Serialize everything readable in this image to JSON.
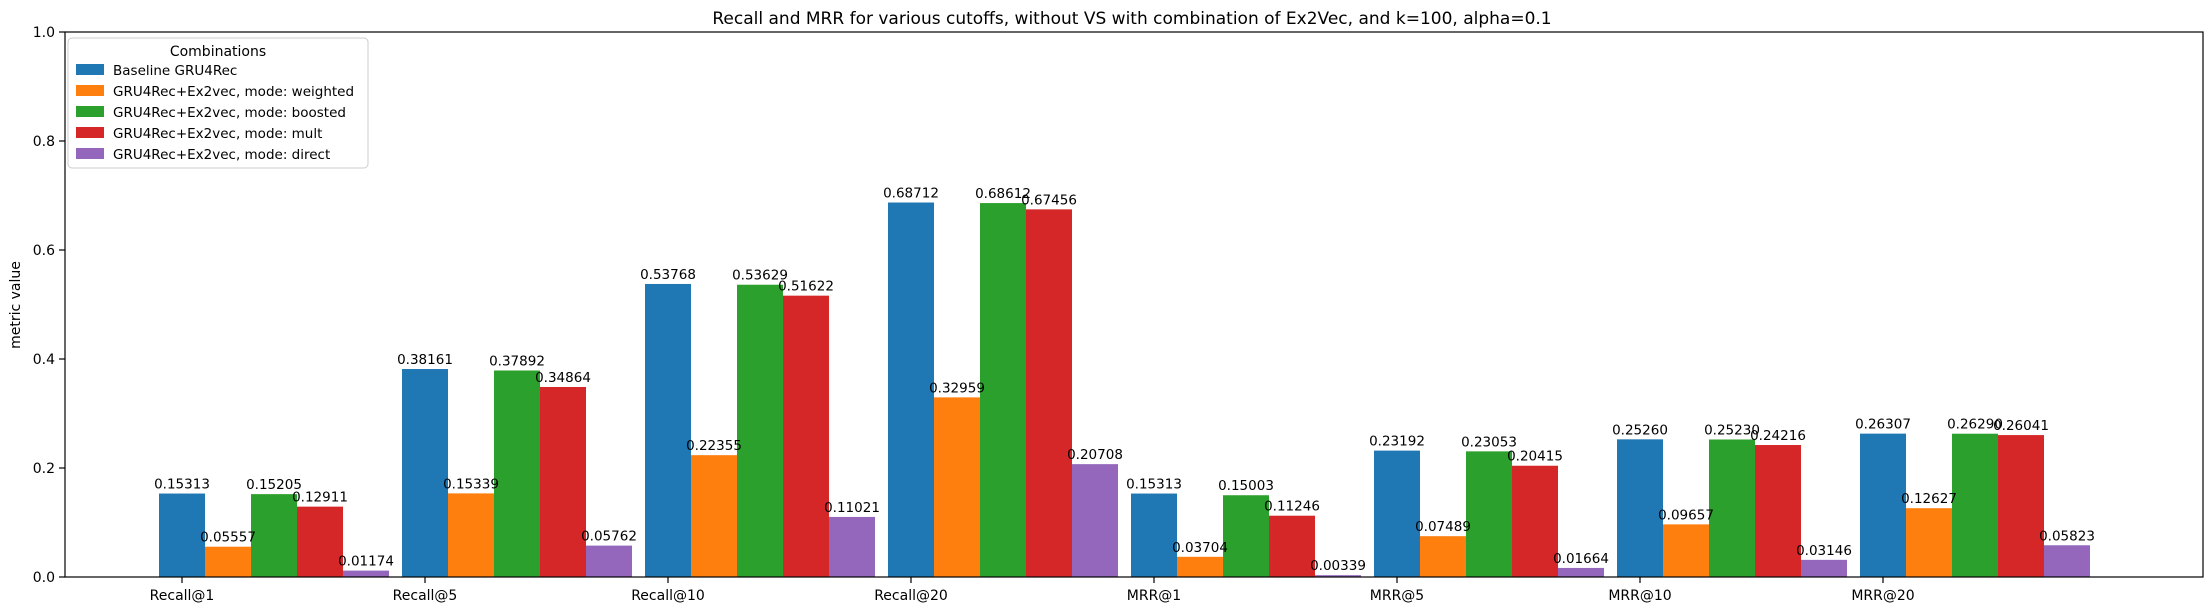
{
  "chart_data": {
    "type": "bar",
    "title": "Recall and MRR for various cutoffs, without VS with combination of Ex2Vec, and k=100, alpha=0.1",
    "xlabel": "",
    "ylabel": "metric value",
    "ylim": [
      0,
      1.0
    ],
    "yticks": [
      "0.0",
      "0.2",
      "0.4",
      "0.6",
      "0.8",
      "1.0"
    ],
    "grid": false,
    "legend_title": "Combinations",
    "legend_position": "top-left",
    "categories": [
      "Recall@1",
      "Recall@5",
      "Recall@10",
      "Recall@20",
      "MRR@1",
      "MRR@5",
      "MRR@10",
      "MRR@20"
    ],
    "series": [
      {
        "name": "Baseline GRU4Rec",
        "color": "#1f77b4",
        "values": [
          0.15313,
          0.38161,
          0.53768,
          0.68712,
          0.15313,
          0.23192,
          0.2526,
          0.26307
        ],
        "labels": [
          "0.15313",
          "0.38161",
          "0.53768",
          "0.68712",
          "0.15313",
          "0.23192",
          "0.25260",
          "0.26307"
        ]
      },
      {
        "name": "GRU4Rec+Ex2vec, mode: weighted",
        "color": "#ff7f0e",
        "values": [
          0.05557,
          0.15339,
          0.22355,
          0.32959,
          0.03704,
          0.07489,
          0.09657,
          0.12627
        ],
        "labels": [
          "0.05557",
          "0.15339",
          "0.22355",
          "0.32959",
          "0.03704",
          "0.07489",
          "0.09657",
          "0.12627"
        ]
      },
      {
        "name": "GRU4Rec+Ex2vec, mode: boosted",
        "color": "#2ca02c",
        "values": [
          0.15205,
          0.37892,
          0.53629,
          0.68612,
          0.15003,
          0.23053,
          0.2523,
          0.2629
        ],
        "labels": [
          "0.15205",
          "0.37892",
          "0.53629",
          "0.68612",
          "0.15003",
          "0.23053",
          "0.25230",
          "0.26290"
        ]
      },
      {
        "name": "GRU4Rec+Ex2vec, mode: mult",
        "color": "#d62728",
        "values": [
          0.12911,
          0.34864,
          0.51622,
          0.67456,
          0.11246,
          0.20415,
          0.24216,
          0.26041
        ],
        "labels": [
          "0.12911",
          "0.34864",
          "0.51622",
          "0.67456",
          "0.11246",
          "0.20415",
          "0.24216",
          "0.26041"
        ]
      },
      {
        "name": "GRU4Rec+Ex2vec, mode: direct",
        "color": "#9467bd",
        "values": [
          0.01174,
          0.05762,
          0.11021,
          0.20708,
          0.00339,
          0.01664,
          0.03146,
          0.05823
        ],
        "labels": [
          "0.01174",
          "0.05762",
          "0.11021",
          "0.20708",
          "0.00339",
          "0.01664",
          "0.03146",
          "0.05823"
        ]
      }
    ]
  }
}
